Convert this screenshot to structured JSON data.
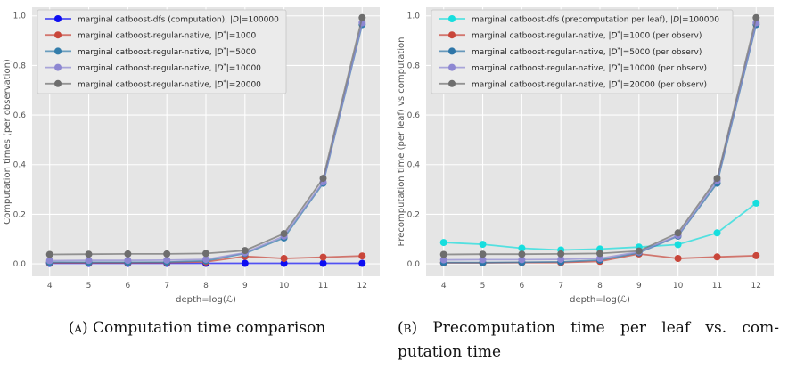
{
  "page": {
    "background": "#ffffff"
  },
  "captions": {
    "a": {
      "label": "(a)",
      "text": " Computation time comparison"
    },
    "b": {
      "label": "(b)",
      "line1": " Precomputation time per leaf vs. com-",
      "line2": "putation time"
    }
  },
  "chart_data": [
    {
      "type": "line",
      "title": "",
      "xlabel": "depth=log(ℒ)",
      "ylabel": "Computation times (per observation)",
      "x": [
        4,
        5,
        6,
        7,
        8,
        9,
        10,
        11,
        12
      ],
      "xtick_labels": [
        "4",
        "5",
        "6",
        "7",
        "8",
        "9",
        "10",
        "11",
        "12"
      ],
      "yticks": [
        0.0,
        0.2,
        0.4,
        0.6,
        0.8,
        1.0
      ],
      "ytick_labels": [
        "0.0",
        "0.2",
        "0.4",
        "0.6",
        "0.8",
        "1.0"
      ],
      "xlim": [
        3.55,
        12.45
      ],
      "ylim": [
        -0.05,
        1.035
      ],
      "grid": true,
      "legend_position": "upper left",
      "plot_bg": "#e5e5e5",
      "grid_color": "#ffffff",
      "tick_color": "#555555",
      "legend_bg": "#ebebeb",
      "legend_border": "#cccccc",
      "series": [
        {
          "name": "marginal catboost-dfs (computation), |D|=100000",
          "color": "#0d0df2",
          "label_parts": [
            [
              "marginal catboost-dfs (computation), |",
              ""
            ],
            [
              "D",
              "i"
            ],
            [
              "|=100000",
              ""
            ]
          ],
          "values": [
            0.002,
            0.002,
            0.002,
            0.002,
            0.002,
            0.002,
            0.002,
            0.002,
            0.002
          ]
        },
        {
          "name": "marginal catboost-regular-native, |D*|=1000",
          "color": "#c9463a",
          "label_parts": [
            [
              "marginal catboost-regular-native, |",
              ""
            ],
            [
              "D",
              "i"
            ],
            [
              "*",
              "sup"
            ],
            [
              "|=1000",
              ""
            ]
          ],
          "values": [
            0.004,
            0.004,
            0.004,
            0.005,
            0.008,
            0.03,
            0.022,
            0.027,
            0.032
          ]
        },
        {
          "name": "marginal catboost-regular-native, |D*|=5000",
          "color": "#337dab",
          "label_parts": [
            [
              "marginal catboost-regular-native, |",
              ""
            ],
            [
              "D",
              "i"
            ],
            [
              "*",
              "sup"
            ],
            [
              "|=5000",
              ""
            ]
          ],
          "values": [
            0.006,
            0.006,
            0.006,
            0.007,
            0.012,
            0.042,
            0.105,
            0.325,
            0.965
          ]
        },
        {
          "name": "marginal catboost-regular-native, |D*|=10000",
          "color": "#8d87d2",
          "label_parts": [
            [
              "marginal catboost-regular-native, |",
              ""
            ],
            [
              "D",
              "i"
            ],
            [
              "*",
              "sup"
            ],
            [
              "|=10000",
              ""
            ]
          ],
          "values": [
            0.013,
            0.014,
            0.014,
            0.015,
            0.018,
            0.045,
            0.112,
            0.33,
            0.972
          ]
        },
        {
          "name": "marginal catboost-regular-native, |D*|=20000",
          "color": "#6e6e6e",
          "label_parts": [
            [
              "marginal catboost-regular-native, |",
              ""
            ],
            [
              "D",
              "i"
            ],
            [
              "*",
              "sup"
            ],
            [
              "|=20000",
              ""
            ]
          ],
          "values": [
            0.038,
            0.039,
            0.04,
            0.04,
            0.042,
            0.054,
            0.122,
            0.345,
            0.993
          ]
        }
      ]
    },
    {
      "type": "line",
      "title": "",
      "xlabel": "depth=log(ℒ)",
      "ylabel": "Precomputation time (per leaf) vs computation",
      "x": [
        4,
        5,
        6,
        7,
        8,
        9,
        10,
        11,
        12
      ],
      "xtick_labels": [
        "4",
        "5",
        "6",
        "7",
        "8",
        "9",
        "10",
        "11",
        "12"
      ],
      "yticks": [
        0.0,
        0.2,
        0.4,
        0.6,
        0.8,
        1.0
      ],
      "ytick_labels": [
        "0.0",
        "0.2",
        "0.4",
        "0.6",
        "0.8",
        "1.0"
      ],
      "xlim": [
        3.55,
        12.45
      ],
      "ylim": [
        -0.05,
        1.035
      ],
      "grid": true,
      "legend_position": "upper left",
      "plot_bg": "#e5e5e5",
      "grid_color": "#ffffff",
      "tick_color": "#555555",
      "legend_bg": "#ebebeb",
      "legend_border": "#cccccc",
      "series": [
        {
          "name": "marginal catboost-dfs (precomputation per leaf), |D|=100000",
          "color": "#16dede",
          "label_parts": [
            [
              "marginal catboost-dfs (precomputation per leaf), |",
              ""
            ],
            [
              "D",
              "i"
            ],
            [
              "|=100000",
              ""
            ]
          ],
          "values": [
            0.086,
            0.079,
            0.063,
            0.056,
            0.06,
            0.068,
            0.078,
            0.125,
            0.245
          ]
        },
        {
          "name": "marginal catboost-regular-native, |D*|=1000 (per observ)",
          "color": "#c9463a",
          "label_parts": [
            [
              "marginal catboost-regular-native, |",
              ""
            ],
            [
              "D",
              "i"
            ],
            [
              "*",
              "sup"
            ],
            [
              "|=1000 (per observ)",
              ""
            ]
          ],
          "values": [
            0.004,
            0.004,
            0.005,
            0.005,
            0.01,
            0.04,
            0.022,
            0.028,
            0.033
          ]
        },
        {
          "name": "marginal catboost-regular-native, |D*|=5000 (per observ)",
          "color": "#2e76a8",
          "label_parts": [
            [
              "marginal catboost-regular-native, |",
              ""
            ],
            [
              "D",
              "i"
            ],
            [
              "*",
              "sup"
            ],
            [
              "|=5000 (per observ)",
              ""
            ]
          ],
          "values": [
            0.005,
            0.005,
            0.006,
            0.008,
            0.015,
            0.045,
            0.112,
            0.325,
            0.965
          ]
        },
        {
          "name": "marginal catboost-regular-native, |D*|=10000 (per observ)",
          "color": "#8d87d2",
          "label_parts": [
            [
              "marginal catboost-regular-native, |",
              ""
            ],
            [
              "D",
              "i"
            ],
            [
              "*",
              "sup"
            ],
            [
              "|=10000 (per observ)",
              ""
            ]
          ],
          "values": [
            0.016,
            0.017,
            0.017,
            0.018,
            0.022,
            0.048,
            0.115,
            0.335,
            0.972
          ]
        },
        {
          "name": "marginal catboost-regular-native, |D*|=20000 (per observ)",
          "color": "#6e6e6e",
          "label_parts": [
            [
              "marginal catboost-regular-native, |",
              ""
            ],
            [
              "D",
              "i"
            ],
            [
              "*",
              "sup"
            ],
            [
              "|=20000 (per observ)",
              ""
            ]
          ],
          "values": [
            0.038,
            0.039,
            0.039,
            0.04,
            0.042,
            0.052,
            0.125,
            0.345,
            0.993
          ]
        }
      ]
    }
  ]
}
